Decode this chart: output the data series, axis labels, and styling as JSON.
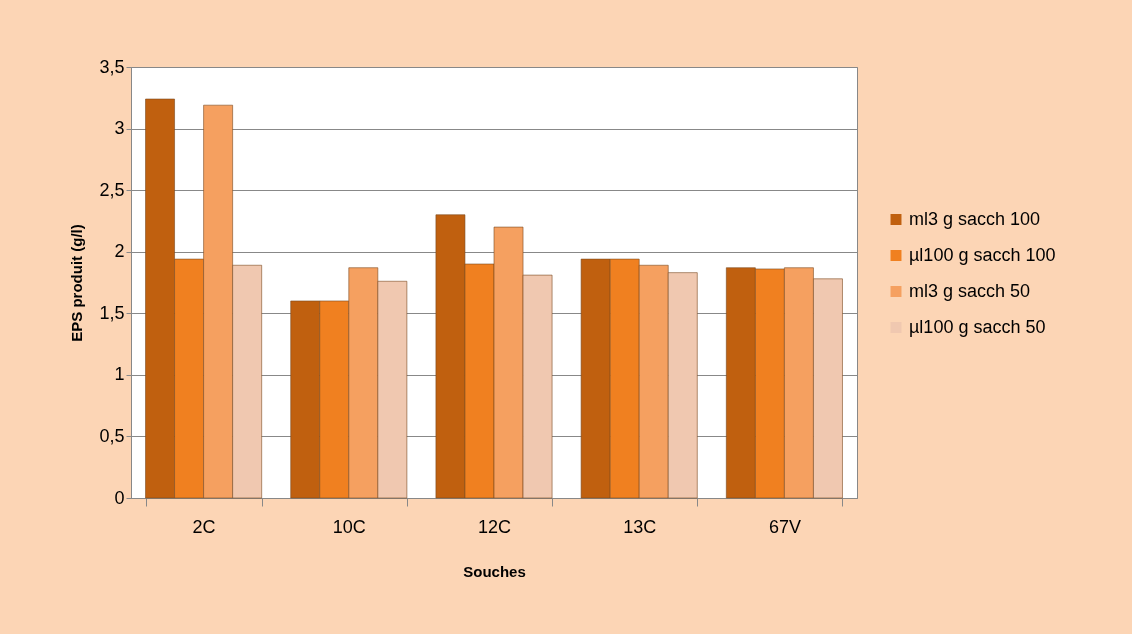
{
  "chart_data": {
    "type": "bar",
    "xlabel": "Souches",
    "ylabel": "EPS produit (g/l)",
    "categories": [
      "2C",
      "10C",
      "12C",
      "13C",
      "67V"
    ],
    "series": [
      {
        "name": "ml3 g sacch 100",
        "color": "#c0600f",
        "values": [
          3.24,
          1.6,
          2.3,
          1.94,
          1.87
        ]
      },
      {
        "name": "µl100 g sacch 100",
        "color": "#f08020",
        "values": [
          1.94,
          1.6,
          1.9,
          1.94,
          1.86
        ]
      },
      {
        "name": "ml3 g sacch 50",
        "color": "#f5a060",
        "values": [
          3.19,
          1.87,
          2.2,
          1.89,
          1.87
        ]
      },
      {
        "name": "µl100 g sacch 50",
        "color": "#f0c8b0",
        "values": [
          1.89,
          1.76,
          1.81,
          1.83,
          1.78
        ]
      }
    ],
    "ylim": [
      0,
      3.5
    ],
    "yticks": [
      0,
      {
        "value": 0.5,
        "label": "0,5"
      },
      1,
      {
        "value": 1.5,
        "label": "1,5"
      },
      2,
      {
        "value": 2.5,
        "label": "2,5"
      },
      3,
      {
        "value": 3.5,
        "label": "3,5"
      }
    ],
    "grid": "y",
    "legend": "right"
  }
}
